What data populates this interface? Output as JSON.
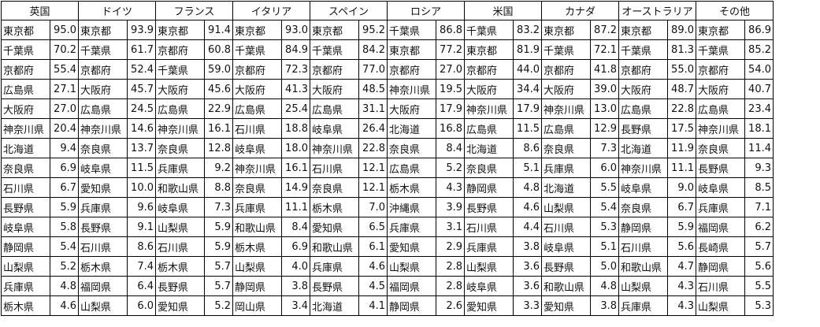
{
  "columns": [
    "英国",
    "ドイツ",
    "フランス",
    "イタリア",
    "スペイン",
    "ロシア",
    "米国",
    "カナダ",
    "オーストラリア",
    "その他"
  ],
  "rows": [
    [
      [
        "東京都",
        "95.0"
      ],
      [
        "東京都",
        "93.9"
      ],
      [
        "東京都",
        "91.4"
      ],
      [
        "東京都",
        "93.0"
      ],
      [
        "東京都",
        "95.2"
      ],
      [
        "千葉県",
        "86.8"
      ],
      [
        "千葉県",
        "83.2"
      ],
      [
        "東京都",
        "87.2"
      ],
      [
        "東京都",
        "89.0"
      ],
      [
        "東京都",
        "86.9"
      ]
    ],
    [
      [
        "千葉県",
        "70.2"
      ],
      [
        "千葉県",
        "61.7"
      ],
      [
        "京都府",
        "60.8"
      ],
      [
        "千葉県",
        "84.9"
      ],
      [
        "千葉県",
        "84.2"
      ],
      [
        "東京都",
        "77.2"
      ],
      [
        "東京都",
        "81.9"
      ],
      [
        "千葉県",
        "72.1"
      ],
      [
        "千葉県",
        "81.3"
      ],
      [
        "千葉県",
        "85.2"
      ]
    ],
    [
      [
        "京都府",
        "55.4"
      ],
      [
        "京都府",
        "52.4"
      ],
      [
        "千葉県",
        "59.0"
      ],
      [
        "京都府",
        "72.3"
      ],
      [
        "京都府",
        "77.0"
      ],
      [
        "京都府",
        "27.0"
      ],
      [
        "京都府",
        "44.0"
      ],
      [
        "京都府",
        "41.8"
      ],
      [
        "京都府",
        "55.0"
      ],
      [
        "京都府",
        "54.0"
      ]
    ],
    [
      [
        "広島県",
        "27.1"
      ],
      [
        "大阪府",
        "45.7"
      ],
      [
        "大阪府",
        "45.6"
      ],
      [
        "大阪府",
        "41.3"
      ],
      [
        "大阪府",
        "48.5"
      ],
      [
        "神奈川県",
        "19.5"
      ],
      [
        "大阪府",
        "34.4"
      ],
      [
        "大阪府",
        "39.0"
      ],
      [
        "大阪府",
        "48.7"
      ],
      [
        "大阪府",
        "40.7"
      ]
    ],
    [
      [
        "大阪府",
        "27.0"
      ],
      [
        "広島県",
        "24.5"
      ],
      [
        "広島県",
        "22.9"
      ],
      [
        "広島県",
        "25.4"
      ],
      [
        "広島県",
        "31.1"
      ],
      [
        "大阪府",
        "17.9"
      ],
      [
        "神奈川県",
        "17.9"
      ],
      [
        "神奈川県",
        "13.0"
      ],
      [
        "広島県",
        "22.8"
      ],
      [
        "広島県",
        "23.4"
      ]
    ],
    [
      [
        "神奈川県",
        "20.4"
      ],
      [
        "神奈川県",
        "14.6"
      ],
      [
        "神奈川県",
        "16.1"
      ],
      [
        "石川県",
        "18.8"
      ],
      [
        "岐阜県",
        "26.4"
      ],
      [
        "北海道",
        "16.8"
      ],
      [
        "広島県",
        "11.5"
      ],
      [
        "広島県",
        "12.9"
      ],
      [
        "長野県",
        "17.5"
      ],
      [
        "神奈川県",
        "18.1"
      ]
    ],
    [
      [
        "北海道",
        "9.4"
      ],
      [
        "奈良県",
        "13.7"
      ],
      [
        "奈良県",
        "12.8"
      ],
      [
        "岐阜県",
        "18.0"
      ],
      [
        "神奈川県",
        "22.8"
      ],
      [
        "奈良県",
        "8.4"
      ],
      [
        "北海道",
        "8.6"
      ],
      [
        "奈良県",
        "7.3"
      ],
      [
        "北海道",
        "11.9"
      ],
      [
        "奈良県",
        "11.4"
      ]
    ],
    [
      [
        "奈良県",
        "6.9"
      ],
      [
        "岐阜県",
        "11.5"
      ],
      [
        "兵庫県",
        "9.2"
      ],
      [
        "神奈川県",
        "16.1"
      ],
      [
        "石川県",
        "12.1"
      ],
      [
        "広島県",
        "5.2"
      ],
      [
        "奈良県",
        "5.1"
      ],
      [
        "兵庫県",
        "6.0"
      ],
      [
        "神奈川県",
        "11.1"
      ],
      [
        "長野県",
        "9.3"
      ]
    ],
    [
      [
        "石川県",
        "6.7"
      ],
      [
        "愛知県",
        "10.0"
      ],
      [
        "和歌山県",
        "8.8"
      ],
      [
        "奈良県",
        "14.9"
      ],
      [
        "奈良県",
        "12.1"
      ],
      [
        "栃木県",
        "4.3"
      ],
      [
        "静岡県",
        "4.8"
      ],
      [
        "北海道",
        "5.5"
      ],
      [
        "岐阜県",
        "9.0"
      ],
      [
        "岐阜県",
        "8.5"
      ]
    ],
    [
      [
        "長野県",
        "5.9"
      ],
      [
        "兵庫県",
        "9.6"
      ],
      [
        "岐阜県",
        "7.3"
      ],
      [
        "兵庫県",
        "11.1"
      ],
      [
        "栃木県",
        "7.0"
      ],
      [
        "沖縄県",
        "3.9"
      ],
      [
        "長野県",
        "4.6"
      ],
      [
        "山梨県",
        "5.4"
      ],
      [
        "奈良県",
        "6.7"
      ],
      [
        "兵庫県",
        "7.1"
      ]
    ],
    [
      [
        "岐阜県",
        "5.8"
      ],
      [
        "長野県",
        "9.1"
      ],
      [
        "山梨県",
        "5.9"
      ],
      [
        "和歌山県",
        "8.4"
      ],
      [
        "愛知県",
        "6.5"
      ],
      [
        "兵庫県",
        "3.1"
      ],
      [
        "石川県",
        "4.4"
      ],
      [
        "石川県",
        "5.3"
      ],
      [
        "静岡県",
        "5.9"
      ],
      [
        "福岡県",
        "6.2"
      ]
    ],
    [
      [
        "静岡県",
        "5.4"
      ],
      [
        "石川県",
        "8.6"
      ],
      [
        "石川県",
        "5.9"
      ],
      [
        "栃木県",
        "6.9"
      ],
      [
        "和歌山県",
        "6.1"
      ],
      [
        "愛知県",
        "2.9"
      ],
      [
        "兵庫県",
        "3.8"
      ],
      [
        "岐阜県",
        "5.1"
      ],
      [
        "石川県",
        "5.6"
      ],
      [
        "長崎県",
        "5.7"
      ]
    ],
    [
      [
        "山梨県",
        "5.2"
      ],
      [
        "栃木県",
        "7.4"
      ],
      [
        "栃木県",
        "5.7"
      ],
      [
        "山梨県",
        "4.0"
      ],
      [
        "兵庫県",
        "4.6"
      ],
      [
        "山梨県",
        "2.8"
      ],
      [
        "山梨県",
        "3.6"
      ],
      [
        "長野県",
        "5.0"
      ],
      [
        "和歌山県",
        "4.7"
      ],
      [
        "静岡県",
        "5.6"
      ]
    ],
    [
      [
        "兵庫県",
        "4.8"
      ],
      [
        "福岡県",
        "6.4"
      ],
      [
        "長野県",
        "5.7"
      ],
      [
        "静岡県",
        "3.8"
      ],
      [
        "長野県",
        "4.5"
      ],
      [
        "福岡県",
        "2.8"
      ],
      [
        "岐阜県",
        "3.6"
      ],
      [
        "和歌山県",
        "4.8"
      ],
      [
        "山梨県",
        "4.3"
      ],
      [
        "石川県",
        "5.5"
      ]
    ],
    [
      [
        "栃木県",
        "4.6"
      ],
      [
        "山梨県",
        "6.0"
      ],
      [
        "愛知県",
        "5.2"
      ],
      [
        "岡山県",
        "3.4"
      ],
      [
        "北海道",
        "4.1"
      ],
      [
        "静岡県",
        "2.6"
      ],
      [
        "愛知県",
        "3.3"
      ],
      [
        "愛知県",
        "3.8"
      ],
      [
        "兵庫県",
        "4.3"
      ],
      [
        "山梨県",
        "5.3"
      ]
    ]
  ]
}
